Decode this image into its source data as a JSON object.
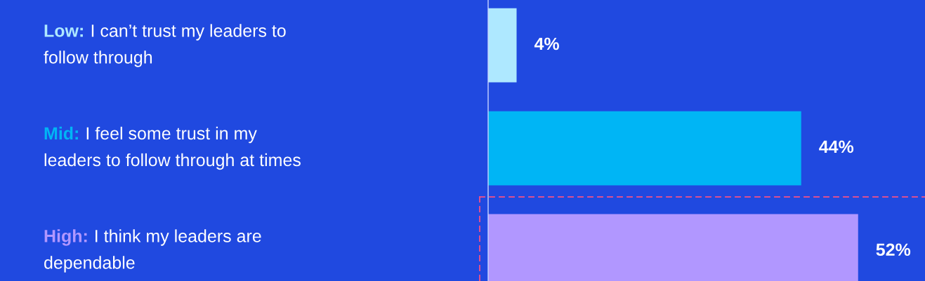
{
  "chart_data": {
    "type": "bar",
    "orientation": "horizontal",
    "categories": [
      "Low: I can’t trust my leaders to\nfollow through",
      "Mid: I feel some trust in my\nleaders to follow through at times",
      "High: I think my leaders are\ndependable"
    ],
    "values": [
      4,
      44,
      52
    ],
    "colors": [
      "#aee8ff",
      "#00b5f5",
      "#b197ff"
    ],
    "value_labels": [
      "4%",
      "44%",
      "52%"
    ],
    "xlim": [
      0,
      61.4
    ]
  }
}
